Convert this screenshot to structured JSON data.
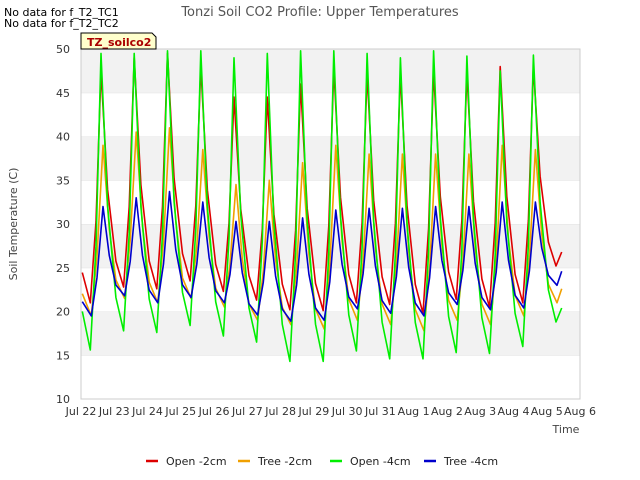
{
  "no_data_notes": [
    "No data for f_T2_TC1",
    "No data for f_T2_TC2"
  ],
  "chart_data": {
    "type": "line",
    "title": "Tonzi Soil CO2 Profile: Upper Temperatures",
    "xlabel": "Time",
    "ylabel": "Soil Temperature (C)",
    "badge": "TZ_soilco2",
    "xlim": [
      "2021-07-22",
      "2021-08-06"
    ],
    "ylim": [
      10,
      50
    ],
    "x_tick_labels": [
      "Jul 22",
      "Jul 23",
      "Jul 24",
      "Jul 25",
      "Jul 26",
      "Jul 27",
      "Jul 28",
      "Jul 29",
      "Jul 30",
      "Jul 31",
      "Aug 1",
      "Aug 2",
      "Aug 3",
      "Aug 4",
      "Aug 5",
      "Aug 6"
    ],
    "y_ticks": [
      10,
      15,
      20,
      25,
      30,
      35,
      40,
      45,
      50
    ],
    "grid": "horizontal bands",
    "legend_position": "bottom",
    "x": [
      "Jul 22",
      "Jul 23",
      "Jul 24",
      "Jul 25",
      "Jul 26",
      "Jul 27",
      "Jul 28",
      "Jul 29",
      "Jul 30",
      "Jul 31",
      "Aug 1",
      "Aug 2",
      "Aug 3",
      "Aug 4",
      "Aug 5"
    ],
    "series": [
      {
        "name": "Open -2cm",
        "color": "#dd0000",
        "min": [
          21.0,
          22.8,
          22.6,
          23.5,
          22.3,
          21.3,
          20.2,
          20.1,
          21.0,
          20.8,
          19.8,
          21.4,
          20.5,
          21.0,
          25.2
        ],
        "max": [
          47.5,
          49.0,
          49.5,
          48.0,
          44.5,
          44.5,
          46.0,
          47.8,
          47.2,
          47.2,
          47.5,
          47.3,
          48.0,
          48.0,
          null
        ]
      },
      {
        "name": "Tree -2cm",
        "color": "#f0a000",
        "min": [
          19.5,
          21.5,
          21.0,
          21.5,
          20.5,
          19.0,
          18.5,
          18.0,
          19.0,
          18.5,
          17.8,
          19.0,
          18.5,
          19.5,
          21.0
        ],
        "max": [
          39.0,
          40.5,
          41.0,
          38.5,
          34.5,
          35.0,
          37.0,
          39.0,
          38.0,
          38.0,
          38.0,
          38.0,
          39.0,
          38.5,
          null
        ]
      },
      {
        "name": "Open -4cm",
        "color": "#00ee00",
        "min": [
          15.6,
          17.8,
          17.6,
          18.4,
          17.2,
          16.5,
          14.3,
          14.3,
          15.5,
          14.6,
          14.6,
          15.3,
          15.2,
          16.0,
          18.8
        ],
        "max": [
          49.5,
          49.5,
          49.8,
          49.8,
          49.0,
          49.5,
          49.8,
          49.8,
          49.5,
          49.0,
          49.8,
          49.2,
          47.5,
          49.3,
          null
        ]
      },
      {
        "name": "Tree -4cm",
        "color": "#0000cc",
        "min": [
          19.5,
          21.8,
          21.0,
          21.6,
          21.0,
          19.6,
          18.9,
          19.0,
          20.3,
          19.8,
          19.5,
          20.8,
          20.2,
          20.4,
          23.0
        ],
        "max": [
          32.0,
          33.0,
          33.7,
          32.5,
          30.3,
          30.3,
          30.7,
          31.6,
          31.8,
          31.8,
          32.0,
          32.0,
          32.5,
          32.5,
          null
        ]
      }
    ]
  }
}
